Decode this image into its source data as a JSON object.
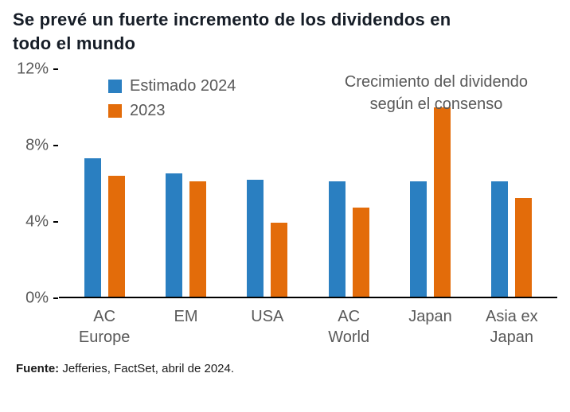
{
  "title": {
    "line1": "Se prevé un fuerte incremento de los dividendos en",
    "line2": "todo el mundo"
  },
  "annotation": {
    "line1": "Crecimiento del dividendo",
    "line2": "según el consenso"
  },
  "legend": [
    {
      "label": "Estimado 2024",
      "color": "#2a7fc1"
    },
    {
      "label": "2023",
      "color": "#e36c0a"
    }
  ],
  "footer": {
    "source_label": "Fuente:",
    "source_text": " Jefferies, FactSet, abril de 2024."
  },
  "chart_data": {
    "type": "bar",
    "title": "Crecimiento del dividendo según el consenso",
    "categories": [
      "AC Europe",
      "EM",
      "USA",
      "AC World",
      "Japan",
      "Asia ex Japan"
    ],
    "series": [
      {
        "name": "Estimado 2024",
        "color": "#2a7fc1",
        "values": [
          7.3,
          6.5,
          6.2,
          6.1,
          6.1,
          6.1
        ]
      },
      {
        "name": "2023",
        "color": "#e36c0a",
        "values": [
          6.4,
          6.1,
          3.9,
          4.7,
          10.0,
          5.2
        ]
      }
    ],
    "ylim": [
      0,
      12
    ],
    "yticks": [
      0,
      4,
      8,
      12
    ],
    "ytick_labels": [
      "0%",
      "4%",
      "8%",
      "12%"
    ],
    "ylabel_format": "percent",
    "grid": false,
    "legend_position": "top-left-inside",
    "annotation_position": "top-right-inside"
  }
}
